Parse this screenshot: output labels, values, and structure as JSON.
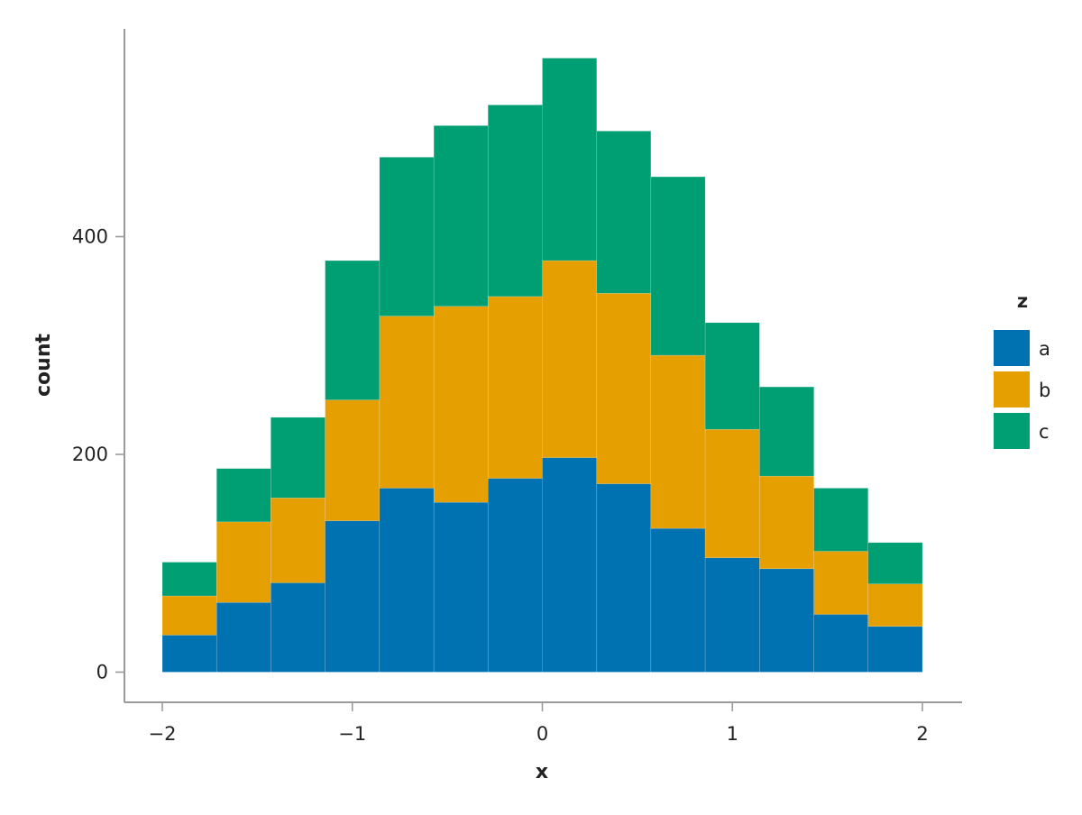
{
  "chart_data": {
    "type": "bar",
    "subtype": "stacked-histogram",
    "xlabel": "x",
    "ylabel": "count",
    "xlim": [
      -2,
      2
    ],
    "ylim": [
      0,
      560
    ],
    "x_ticks": [
      -2,
      -1,
      0,
      1,
      2
    ],
    "x_tick_labels": [
      "−2",
      "−1",
      "0",
      "1",
      "2"
    ],
    "y_ticks": [
      0,
      200,
      400
    ],
    "y_tick_labels": [
      "0",
      "200",
      "400"
    ],
    "bins": [
      [
        -2.0,
        -1.714
      ],
      [
        -1.714,
        -1.429
      ],
      [
        -1.429,
        -1.143
      ],
      [
        -1.143,
        -0.857
      ],
      [
        -0.857,
        -0.571
      ],
      [
        -0.571,
        -0.286
      ],
      [
        -0.286,
        0.0
      ],
      [
        0.0,
        0.286
      ],
      [
        0.286,
        0.571
      ],
      [
        0.571,
        0.857
      ],
      [
        0.857,
        1.143
      ],
      [
        1.143,
        1.429
      ],
      [
        1.429,
        1.714
      ],
      [
        1.714,
        2.0
      ]
    ],
    "series": [
      {
        "name": "a",
        "color": "#0072b2",
        "values": [
          34,
          64,
          82,
          139,
          169,
          156,
          178,
          197,
          173,
          132,
          105,
          95,
          53,
          42
        ]
      },
      {
        "name": "b",
        "color": "#e69f00",
        "values": [
          36,
          74,
          78,
          111,
          158,
          180,
          167,
          181,
          175,
          159,
          118,
          85,
          58,
          39
        ]
      },
      {
        "name": "c",
        "color": "#009e73",
        "values": [
          31,
          49,
          74,
          128,
          146,
          166,
          176,
          186,
          149,
          164,
          98,
          82,
          58,
          38
        ]
      }
    ],
    "legend": {
      "title": "z",
      "position": "right"
    },
    "grid": false
  }
}
